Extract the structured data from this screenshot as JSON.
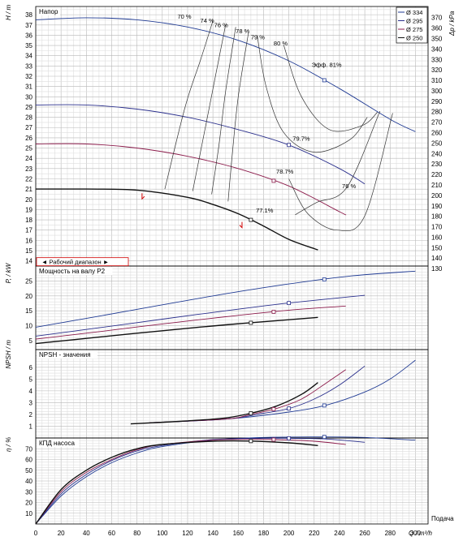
{
  "chart_data": {
    "type": "line",
    "x_axis": {
      "label": "Q / m³/h",
      "caption": "Подача",
      "ticks": [
        0,
        20,
        40,
        60,
        80,
        100,
        120,
        140,
        160,
        180,
        200,
        220,
        240,
        260,
        280,
        300
      ]
    },
    "legend": [
      {
        "label": "Ø 334",
        "color": "#1f3a93"
      },
      {
        "label": "Ø 295",
        "color": "#2a2f8c"
      },
      {
        "label": "Ø 275",
        "color": "#8b1a4a"
      },
      {
        "label": "Ø 250",
        "color": "#111111"
      }
    ],
    "head_panel": {
      "title": "Напор",
      "ylabel": "H / m",
      "ylabel_right": "Δp / kPa",
      "yticks": [
        14,
        15,
        16,
        17,
        18,
        19,
        20,
        21,
        22,
        23,
        24,
        25,
        26,
        27,
        28,
        29,
        30,
        31,
        32,
        33,
        34,
        35,
        36,
        37,
        38
      ],
      "yticks_right": [
        130,
        140,
        150,
        160,
        170,
        180,
        190,
        200,
        210,
        220,
        230,
        240,
        250,
        260,
        270,
        280,
        290,
        300,
        310,
        320,
        330,
        340,
        350,
        360,
        370
      ],
      "operating_range_label": "◄ Рабочий диапазон ►",
      "series": [
        {
          "name": "Ø 334",
          "color": "#1f3a93",
          "x": [
            0,
            40,
            80,
            120,
            160,
            200,
            240,
            280,
            300
          ],
          "y": [
            37.5,
            37.7,
            37.5,
            36.8,
            35.5,
            33.5,
            30.8,
            27.8,
            26.6
          ]
        },
        {
          "name": "Ø 295",
          "color": "#2a2f8c",
          "x": [
            0,
            40,
            80,
            120,
            160,
            200,
            240,
            260
          ],
          "y": [
            29.2,
            29.2,
            28.8,
            28.0,
            26.8,
            25.3,
            23.0,
            21.5
          ]
        },
        {
          "name": "Ø 275",
          "color": "#8b1a4a",
          "x": [
            0,
            40,
            80,
            120,
            160,
            200,
            240,
            245
          ],
          "y": [
            25.4,
            25.4,
            25.0,
            24.2,
            23.0,
            21.3,
            18.8,
            18.5
          ]
        },
        {
          "name": "Ø 250",
          "color": "#111111",
          "x": [
            0,
            40,
            80,
            120,
            140,
            160,
            180,
            200,
            220,
            223
          ],
          "y": [
            21.0,
            21.0,
            20.9,
            20.2,
            19.5,
            18.6,
            17.4,
            16.1,
            15.2,
            15.1
          ]
        }
      ],
      "efficiency_labels": [
        "70 %",
        "74 %",
        "76 %",
        "78 %",
        "79 %",
        "80 %",
        "Эфф. 81%",
        "79.7%",
        "78.7%",
        "77.1%",
        "76 %"
      ]
    },
    "power_panel": {
      "title": "Мощность на валу P2",
      "ylabel": "P, / kW",
      "yticks": [
        5,
        10,
        15,
        20,
        25
      ],
      "series": [
        {
          "name": "Ø 334",
          "color": "#1f3a93",
          "x": [
            0,
            50,
            100,
            150,
            200,
            250,
            300
          ],
          "y": [
            9.5,
            13.2,
            17.0,
            20.7,
            24.0,
            26.7,
            28.3
          ]
        },
        {
          "name": "Ø 295",
          "color": "#2a2f8c",
          "x": [
            0,
            50,
            100,
            150,
            200,
            260
          ],
          "y": [
            6.5,
            9.3,
            12.2,
            15.0,
            17.6,
            20.2
          ]
        },
        {
          "name": "Ø 275",
          "color": "#8b1a4a",
          "x": [
            0,
            50,
            100,
            150,
            200,
            245
          ],
          "y": [
            5.5,
            8.0,
            10.6,
            13.0,
            15.2,
            16.6
          ]
        },
        {
          "name": "Ø 250",
          "color": "#111111",
          "x": [
            0,
            50,
            100,
            150,
            200,
            223
          ],
          "y": [
            4.0,
            6.2,
            8.3,
            10.3,
            12.0,
            12.8
          ]
        }
      ]
    },
    "npsh_panel": {
      "title": "NPSH - значения",
      "ylabel": "NPSH / m",
      "yticks": [
        1,
        2,
        3,
        4,
        5,
        6
      ],
      "series": [
        {
          "name": "Ø 334",
          "color": "#1f3a93",
          "x": [
            90,
            150,
            200,
            230,
            260,
            280,
            300
          ],
          "y": [
            1.3,
            1.6,
            2.2,
            2.8,
            3.9,
            5.0,
            6.6
          ]
        },
        {
          "name": "Ø 295",
          "color": "#2a2f8c",
          "x": [
            90,
            150,
            180,
            200,
            220,
            240,
            260
          ],
          "y": [
            1.3,
            1.6,
            2.1,
            2.5,
            3.3,
            4.5,
            6.1
          ]
        },
        {
          "name": "Ø 275",
          "color": "#8b1a4a",
          "x": [
            90,
            150,
            170,
            190,
            210,
            230,
            245
          ],
          "y": [
            1.3,
            1.6,
            2.0,
            2.5,
            3.3,
            4.7,
            5.8
          ]
        },
        {
          "name": "Ø 250",
          "color": "#111111",
          "x": [
            75,
            120,
            150,
            170,
            190,
            210,
            223
          ],
          "y": [
            1.2,
            1.45,
            1.7,
            2.1,
            2.7,
            3.7,
            4.7
          ]
        }
      ]
    },
    "eff_panel": {
      "title": "КПД насоса",
      "ylabel": "η / %",
      "yticks": [
        10,
        20,
        30,
        40,
        50,
        60,
        70
      ],
      "series": [
        {
          "name": "Ø 334",
          "color": "#1f3a93",
          "x": [
            0,
            20,
            40,
            60,
            80,
            100,
            140,
            180,
            230,
            260,
            300
          ],
          "y": [
            0,
            26,
            44,
            57,
            66,
            72,
            78,
            80.5,
            81,
            80.5,
            78
          ]
        },
        {
          "name": "Ø 295",
          "color": "#2a2f8c",
          "x": [
            0,
            20,
            40,
            60,
            80,
            100,
            140,
            180,
            200,
            230,
            260
          ],
          "y": [
            0,
            28,
            46,
            59,
            68,
            73,
            78.5,
            79.7,
            79.7,
            79,
            76
          ]
        },
        {
          "name": "Ø 275",
          "color": "#8b1a4a",
          "x": [
            0,
            20,
            40,
            60,
            80,
            100,
            140,
            170,
            190,
            220,
            245
          ],
          "y": [
            0,
            30,
            48,
            60,
            69,
            74,
            78,
            78.7,
            78.5,
            77,
            74
          ]
        },
        {
          "name": "Ø 250",
          "color": "#111111",
          "x": [
            0,
            20,
            40,
            60,
            80,
            100,
            140,
            170,
            200,
            223
          ],
          "y": [
            0,
            32,
            50,
            62,
            70,
            74,
            77,
            77.1,
            75.5,
            73
          ]
        }
      ]
    }
  }
}
